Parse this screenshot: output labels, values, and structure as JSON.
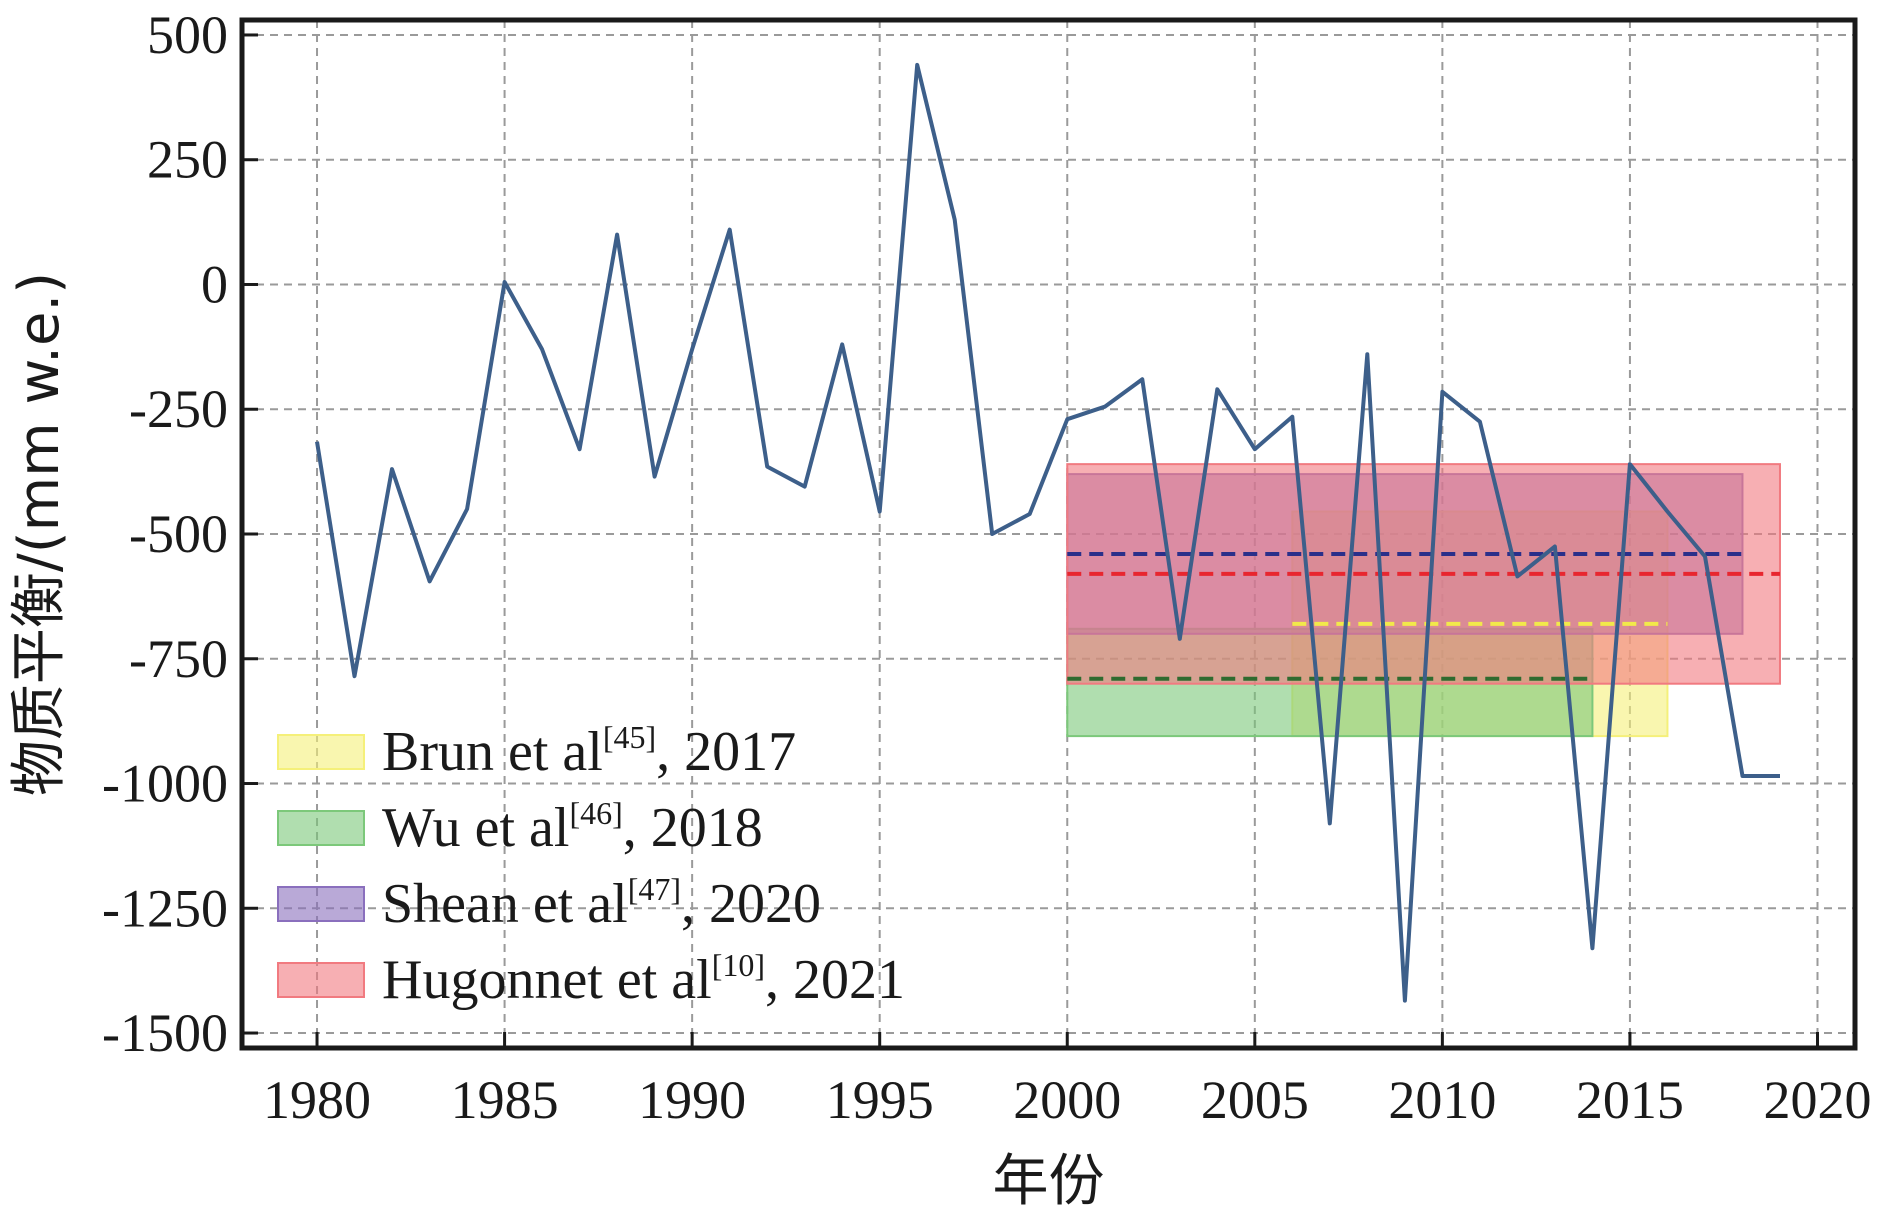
{
  "chart_data": {
    "type": "line",
    "xlabel": "年份",
    "ylabel": "物质平衡/(mm w.e.)",
    "xlim": [
      1978,
      2021
    ],
    "ylim": [
      -1530,
      530
    ],
    "xticks": [
      1980,
      1985,
      1990,
      1995,
      2000,
      2005,
      2010,
      2015,
      2020
    ],
    "yticks": [
      500,
      250,
      0,
      -250,
      -500,
      -750,
      -1000,
      -1250,
      -1500
    ],
    "grid": true,
    "legend_position": "bottom-left",
    "series": [
      {
        "color": "#3d5f8a",
        "x": [
          1980,
          1981,
          1982,
          1983,
          1984,
          1985,
          1986,
          1987,
          1988,
          1989,
          1990,
          1991,
          1992,
          1993,
          1994,
          1995,
          1996,
          1997,
          1998,
          1999,
          2000,
          2001,
          2002,
          2003,
          2004,
          2005,
          2006,
          2007,
          2008,
          2009,
          2010,
          2011,
          2012,
          2013,
          2014,
          2015,
          2016,
          2017,
          2018,
          2019
        ],
        "y": [
          -315,
          -785,
          -370,
          -595,
          -450,
          5,
          -130,
          -330,
          100,
          -385,
          -130,
          110,
          -365,
          -405,
          -120,
          -455,
          440,
          130,
          -500,
          -460,
          -270,
          -245,
          -190,
          -710,
          -210,
          -330,
          -265,
          -1080,
          -140,
          -1435,
          -215,
          -275,
          -585,
          -525,
          -1330,
          -360,
          -455,
          -545,
          -985,
          -985
        ]
      }
    ],
    "bands": [
      {
        "label": "Brun et al",
        "ref": "[45]",
        "year": "2017",
        "color": "#f5f07a",
        "x0": 2006,
        "x1": 2016,
        "y_low": -905,
        "y_high": -455,
        "mean": -680,
        "mean_color": "#f2e94a"
      },
      {
        "label": "Wu et al",
        "ref": "[46]",
        "year": "2018",
        "color": "#7cc87a",
        "x0": 2000,
        "x1": 2014,
        "y_low": -905,
        "y_high": -690,
        "mean": -790,
        "mean_color": "#2f6b2f"
      },
      {
        "label": "Shean et al",
        "ref": "[47]",
        "year": "2020",
        "color": "#8a6fbd",
        "x0": 2000,
        "x1": 2018,
        "y_low": -700,
        "y_high": -380,
        "mean": -540,
        "mean_color": "#2a2f8a"
      },
      {
        "label": "Hugonnet et al",
        "ref": "[10]",
        "year": "2021",
        "color": "#f17a80",
        "x0": 2000,
        "x1": 2019,
        "y_low": -800,
        "y_high": -360,
        "mean": -580,
        "mean_color": "#e8262f"
      }
    ],
    "legend_order": [
      0,
      1,
      2,
      3
    ]
  }
}
